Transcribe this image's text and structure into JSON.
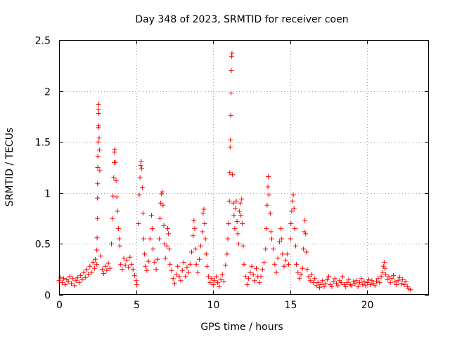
{
  "chart_data": {
    "type": "scatter",
    "title": "Day 348 of 2023, SRMTID for receiver coen",
    "xlabel": "GPS time / hours",
    "ylabel": "SRMTID / TECUs",
    "xlim": [
      0,
      24
    ],
    "ylim": [
      0,
      2.5
    ],
    "xticks": [
      0,
      5,
      10,
      15,
      20
    ],
    "xtick_labels": [
      "0",
      "5",
      "10",
      "15",
      "20"
    ],
    "yticks": [
      0,
      0.5,
      1,
      1.5,
      2,
      2.5
    ],
    "ytick_labels": [
      "0",
      "0.5",
      "1",
      "1.5",
      "2",
      "2.5"
    ],
    "grid": true,
    "marker": "+",
    "color": "#ff0000",
    "series": [
      {
        "name": "SRMTID",
        "points": [
          [
            0.0,
            0.14
          ],
          [
            0.1,
            0.17
          ],
          [
            0.2,
            0.12
          ],
          [
            0.3,
            0.16
          ],
          [
            0.4,
            0.1
          ],
          [
            0.5,
            0.15
          ],
          [
            0.6,
            0.13
          ],
          [
            0.7,
            0.18
          ],
          [
            0.8,
            0.11
          ],
          [
            0.9,
            0.16
          ],
          [
            1.0,
            0.09
          ],
          [
            1.1,
            0.14
          ],
          [
            1.2,
            0.17
          ],
          [
            1.3,
            0.12
          ],
          [
            1.4,
            0.19
          ],
          [
            1.5,
            0.15
          ],
          [
            1.6,
            0.22
          ],
          [
            1.7,
            0.17
          ],
          [
            1.8,
            0.25
          ],
          [
            1.9,
            0.2
          ],
          [
            2.0,
            0.28
          ],
          [
            2.1,
            0.22
          ],
          [
            2.2,
            0.32
          ],
          [
            2.3,
            0.26
          ],
          [
            2.35,
            0.35
          ],
          [
            2.45,
            0.3
          ],
          [
            2.45,
            0.44
          ],
          [
            2.47,
            0.56
          ],
          [
            2.48,
            0.75
          ],
          [
            2.49,
            0.95
          ],
          [
            2.5,
            1.09
          ],
          [
            2.51,
            1.25
          ],
          [
            2.52,
            1.36
          ],
          [
            2.53,
            1.5
          ],
          [
            2.54,
            1.64
          ],
          [
            2.55,
            1.82
          ],
          [
            2.56,
            1.87
          ],
          [
            2.57,
            1.78
          ],
          [
            2.58,
            1.66
          ],
          [
            2.6,
            1.54
          ],
          [
            2.62,
            1.42
          ],
          [
            2.64,
            1.22
          ],
          [
            2.7,
            0.38
          ],
          [
            2.8,
            0.25
          ],
          [
            2.9,
            0.21
          ],
          [
            3.0,
            0.28
          ],
          [
            3.1,
            0.24
          ],
          [
            3.2,
            0.31
          ],
          [
            3.3,
            0.26
          ],
          [
            3.4,
            0.5
          ],
          [
            3.45,
            0.75
          ],
          [
            3.5,
            0.97
          ],
          [
            3.55,
            1.15
          ],
          [
            3.58,
            1.3
          ],
          [
            3.6,
            1.4
          ],
          [
            3.62,
            1.43
          ],
          [
            3.65,
            1.3
          ],
          [
            3.7,
            1.12
          ],
          [
            3.75,
            0.96
          ],
          [
            3.8,
            0.82
          ],
          [
            3.85,
            0.65
          ],
          [
            3.9,
            0.55
          ],
          [
            3.95,
            0.48
          ],
          [
            4.0,
            0.3
          ],
          [
            4.1,
            0.25
          ],
          [
            4.2,
            0.36
          ],
          [
            4.3,
            0.29
          ],
          [
            4.4,
            0.34
          ],
          [
            4.5,
            0.27
          ],
          [
            4.6,
            0.37
          ],
          [
            4.7,
            0.3
          ],
          [
            4.8,
            0.25
          ],
          [
            4.9,
            0.19
          ],
          [
            5.0,
            0.14
          ],
          [
            5.05,
            0.1
          ],
          [
            5.15,
            0.7
          ],
          [
            5.2,
            0.98
          ],
          [
            5.25,
            1.15
          ],
          [
            5.3,
            1.27
          ],
          [
            5.33,
            1.31
          ],
          [
            5.36,
            1.24
          ],
          [
            5.4,
            1.05
          ],
          [
            5.45,
            0.8
          ],
          [
            5.5,
            0.55
          ],
          [
            5.55,
            0.4
          ],
          [
            5.6,
            0.28
          ],
          [
            5.7,
            0.24
          ],
          [
            5.8,
            0.33
          ],
          [
            5.9,
            0.55
          ],
          [
            6.0,
            0.78
          ],
          [
            6.05,
            0.65
          ],
          [
            6.1,
            0.45
          ],
          [
            6.2,
            0.32
          ],
          [
            6.3,
            0.25
          ],
          [
            6.4,
            0.35
          ],
          [
            6.5,
            0.55
          ],
          [
            6.55,
            0.75
          ],
          [
            6.6,
            0.9
          ],
          [
            6.65,
            0.99
          ],
          [
            6.7,
            1.01
          ],
          [
            6.75,
            0.88
          ],
          [
            6.8,
            0.68
          ],
          [
            6.85,
            0.5
          ],
          [
            6.9,
            0.36
          ],
          [
            7.0,
            0.48
          ],
          [
            7.05,
            0.65
          ],
          [
            7.1,
            0.6
          ],
          [
            7.15,
            0.45
          ],
          [
            7.2,
            0.3
          ],
          [
            7.3,
            0.24
          ],
          [
            7.4,
            0.16
          ],
          [
            7.5,
            0.11
          ],
          [
            7.6,
            0.2
          ],
          [
            7.7,
            0.28
          ],
          [
            7.8,
            0.18
          ],
          [
            7.9,
            0.14
          ],
          [
            8.0,
            0.24
          ],
          [
            8.1,
            0.32
          ],
          [
            8.2,
            0.18
          ],
          [
            8.3,
            0.27
          ],
          [
            8.4,
            0.22
          ],
          [
            8.5,
            0.3
          ],
          [
            8.6,
            0.42
          ],
          [
            8.7,
            0.58
          ],
          [
            8.75,
            0.73
          ],
          [
            8.8,
            0.65
          ],
          [
            8.85,
            0.45
          ],
          [
            8.9,
            0.3
          ],
          [
            9.0,
            0.22
          ],
          [
            9.1,
            0.35
          ],
          [
            9.2,
            0.48
          ],
          [
            9.3,
            0.62
          ],
          [
            9.35,
            0.8
          ],
          [
            9.4,
            0.84
          ],
          [
            9.45,
            0.7
          ],
          [
            9.5,
            0.55
          ],
          [
            9.55,
            0.4
          ],
          [
            9.6,
            0.28
          ],
          [
            9.7,
            0.18
          ],
          [
            9.8,
            0.12
          ],
          [
            9.9,
            0.16
          ],
          [
            10.0,
            0.1
          ],
          [
            10.1,
            0.14
          ],
          [
            10.2,
            0.18
          ],
          [
            10.3,
            0.12
          ],
          [
            10.4,
            0.08
          ],
          [
            10.5,
            0.15
          ],
          [
            10.6,
            0.2
          ],
          [
            10.7,
            0.13
          ],
          [
            10.8,
            0.29
          ],
          [
            10.9,
            0.4
          ],
          [
            10.95,
            0.55
          ],
          [
            11.0,
            0.7
          ],
          [
            11.05,
            0.92
          ],
          [
            11.08,
            1.2
          ],
          [
            11.1,
            1.45
          ],
          [
            11.12,
            1.52
          ],
          [
            11.14,
            1.76
          ],
          [
            11.16,
            1.98
          ],
          [
            11.18,
            2.2
          ],
          [
            11.2,
            2.34
          ],
          [
            11.22,
            2.37
          ],
          [
            11.25,
            1.18
          ],
          [
            11.3,
            0.9
          ],
          [
            11.35,
            0.78
          ],
          [
            11.4,
            0.65
          ],
          [
            11.45,
            0.85
          ],
          [
            11.5,
            0.92
          ],
          [
            11.55,
            0.72
          ],
          [
            11.6,
            0.6
          ],
          [
            11.65,
            0.5
          ],
          [
            11.7,
            0.82
          ],
          [
            11.75,
            0.9
          ],
          [
            11.8,
            0.78
          ],
          [
            11.85,
            0.94
          ],
          [
            11.9,
            0.7
          ],
          [
            11.95,
            0.48
          ],
          [
            12.0,
            0.3
          ],
          [
            12.1,
            0.18
          ],
          [
            12.2,
            0.1
          ],
          [
            12.3,
            0.16
          ],
          [
            12.4,
            0.22
          ],
          [
            12.5,
            0.28
          ],
          [
            12.6,
            0.2
          ],
          [
            12.7,
            0.14
          ],
          [
            12.8,
            0.26
          ],
          [
            12.9,
            0.18
          ],
          [
            13.0,
            0.12
          ],
          [
            13.1,
            0.18
          ],
          [
            13.2,
            0.25
          ],
          [
            13.3,
            0.32
          ],
          [
            13.4,
            0.45
          ],
          [
            13.45,
            0.65
          ],
          [
            13.5,
            0.88
          ],
          [
            13.55,
            1.06
          ],
          [
            13.58,
            1.16
          ],
          [
            13.62,
            0.98
          ],
          [
            13.7,
            0.8
          ],
          [
            13.75,
            0.62
          ],
          [
            13.8,
            0.55
          ],
          [
            13.9,
            0.45
          ],
          [
            14.0,
            0.3
          ],
          [
            14.1,
            0.22
          ],
          [
            14.2,
            0.36
          ],
          [
            14.3,
            0.52
          ],
          [
            14.4,
            0.65
          ],
          [
            14.45,
            0.55
          ],
          [
            14.5,
            0.4
          ],
          [
            14.6,
            0.28
          ],
          [
            14.7,
            0.34
          ],
          [
            14.8,
            0.4
          ],
          [
            14.9,
            0.3
          ],
          [
            15.0,
            0.55
          ],
          [
            15.05,
            0.7
          ],
          [
            15.1,
            0.82
          ],
          [
            15.15,
            0.92
          ],
          [
            15.2,
            0.98
          ],
          [
            15.25,
            0.85
          ],
          [
            15.3,
            0.65
          ],
          [
            15.35,
            0.48
          ],
          [
            15.4,
            0.3
          ],
          [
            15.5,
            0.22
          ],
          [
            15.6,
            0.16
          ],
          [
            15.7,
            0.2
          ],
          [
            15.8,
            0.26
          ],
          [
            15.85,
            0.45
          ],
          [
            15.9,
            0.62
          ],
          [
            15.95,
            0.73
          ],
          [
            16.0,
            0.6
          ],
          [
            16.05,
            0.42
          ],
          [
            16.1,
            0.25
          ],
          [
            16.2,
            0.18
          ],
          [
            16.3,
            0.14
          ],
          [
            16.4,
            0.2
          ],
          [
            16.5,
            0.12
          ],
          [
            16.6,
            0.16
          ],
          [
            16.7,
            0.09
          ],
          [
            16.8,
            0.12
          ],
          [
            16.9,
            0.07
          ],
          [
            17.0,
            0.1
          ],
          [
            17.1,
            0.14
          ],
          [
            17.2,
            0.08
          ],
          [
            17.3,
            0.11
          ],
          [
            17.4,
            0.15
          ],
          [
            17.5,
            0.18
          ],
          [
            17.6,
            0.1
          ],
          [
            17.7,
            0.08
          ],
          [
            17.8,
            0.13
          ],
          [
            17.9,
            0.16
          ],
          [
            18.0,
            0.11
          ],
          [
            18.1,
            0.09
          ],
          [
            18.2,
            0.14
          ],
          [
            18.3,
            0.12
          ],
          [
            18.4,
            0.18
          ],
          [
            18.5,
            0.1
          ],
          [
            18.6,
            0.08
          ],
          [
            18.7,
            0.12
          ],
          [
            18.8,
            0.15
          ],
          [
            18.9,
            0.1
          ],
          [
            19.0,
            0.09
          ],
          [
            19.1,
            0.13
          ],
          [
            19.2,
            0.11
          ],
          [
            19.3,
            0.14
          ],
          [
            19.4,
            0.08
          ],
          [
            19.5,
            0.12
          ],
          [
            19.6,
            0.16
          ],
          [
            19.7,
            0.1
          ],
          [
            19.8,
            0.13
          ],
          [
            19.9,
            0.09
          ],
          [
            20.0,
            0.12
          ],
          [
            20.1,
            0.15
          ],
          [
            20.2,
            0.1
          ],
          [
            20.3,
            0.14
          ],
          [
            20.4,
            0.11
          ],
          [
            20.5,
            0.09
          ],
          [
            20.6,
            0.13
          ],
          [
            20.7,
            0.16
          ],
          [
            20.8,
            0.12
          ],
          [
            20.9,
            0.18
          ],
          [
            21.0,
            0.22
          ],
          [
            21.05,
            0.28
          ],
          [
            21.1,
            0.32
          ],
          [
            21.15,
            0.26
          ],
          [
            21.2,
            0.2
          ],
          [
            21.3,
            0.15
          ],
          [
            21.4,
            0.18
          ],
          [
            21.5,
            0.12
          ],
          [
            21.6,
            0.16
          ],
          [
            21.7,
            0.19
          ],
          [
            21.8,
            0.13
          ],
          [
            21.9,
            0.1
          ],
          [
            22.0,
            0.14
          ],
          [
            22.1,
            0.17
          ],
          [
            22.2,
            0.11
          ],
          [
            22.3,
            0.15
          ],
          [
            22.4,
            0.1
          ],
          [
            22.5,
            0.13
          ],
          [
            22.6,
            0.08
          ],
          [
            22.7,
            0.06
          ],
          [
            22.8,
            0.05
          ]
        ]
      }
    ]
  }
}
